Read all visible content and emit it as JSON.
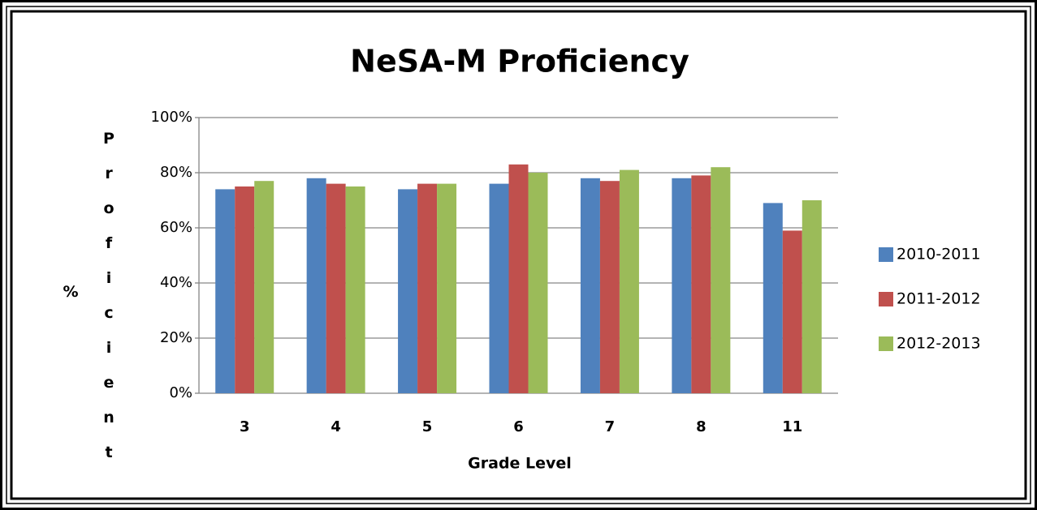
{
  "chart_data": {
    "type": "bar",
    "title": "NeSA-M Proficiency",
    "x_label": "Grade Level",
    "y_label": "% Proficient",
    "categories": [
      "3",
      "4",
      "5",
      "6",
      "7",
      "8",
      "11"
    ],
    "series": [
      {
        "name": "2010-2011",
        "color": "#4f81bd",
        "values": [
          74,
          78,
          74,
          76,
          78,
          78,
          69
        ]
      },
      {
        "name": "2011-2012",
        "color": "#c0504d",
        "values": [
          75,
          76,
          76,
          83,
          77,
          79,
          59
        ]
      },
      {
        "name": "2012-2013",
        "color": "#9bbb59",
        "values": [
          77,
          75,
          76,
          80,
          81,
          82,
          70
        ]
      }
    ],
    "ylim": [
      0,
      100
    ],
    "yticks": [
      {
        "value": 0,
        "label": "0%"
      },
      {
        "value": 20,
        "label": "20%"
      },
      {
        "value": 40,
        "label": "40%"
      },
      {
        "value": 60,
        "label": "60%"
      },
      {
        "value": 80,
        "label": "80%"
      },
      {
        "value": 100,
        "label": "100%"
      }
    ],
    "grid": true,
    "legend": "right"
  }
}
